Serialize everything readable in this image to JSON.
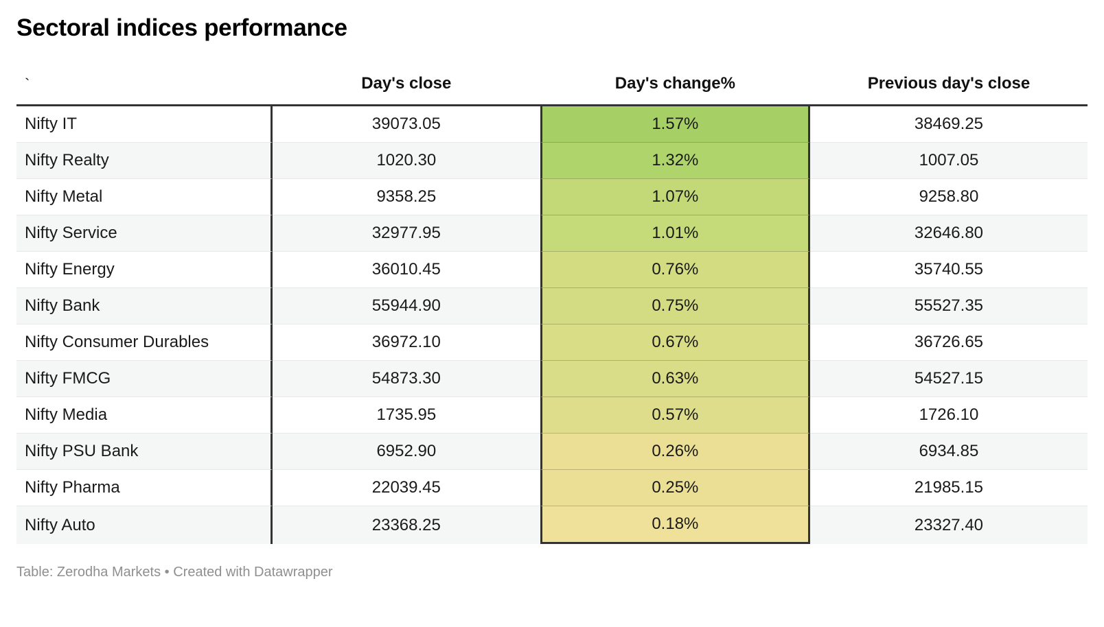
{
  "chart_data": {
    "type": "table",
    "title": "Sectoral indices performance",
    "columns": [
      "`",
      "Day's close",
      "Day's change%",
      "Previous day's close"
    ],
    "rows": [
      {
        "index": "Nifty IT",
        "days_close": "39073.05",
        "days_change_pct": "1.57%",
        "prev_close": "38469.25",
        "change_color": "#a6d065"
      },
      {
        "index": "Nifty Realty",
        "days_close": "1020.30",
        "days_change_pct": "1.32%",
        "prev_close": "1007.05",
        "change_color": "#b0d46c"
      },
      {
        "index": "Nifty Metal",
        "days_close": "9358.25",
        "days_change_pct": "1.07%",
        "prev_close": "9258.80",
        "change_color": "#c3d977"
      },
      {
        "index": "Nifty Service",
        "days_close": "32977.95",
        "days_change_pct": "1.01%",
        "prev_close": "32646.80",
        "change_color": "#c5da79"
      },
      {
        "index": "Nifty Energy",
        "days_close": "36010.45",
        "days_change_pct": "0.76%",
        "prev_close": "35740.55",
        "change_color": "#d4dc82"
      },
      {
        "index": "Nifty Bank",
        "days_close": "55944.90",
        "days_change_pct": "0.75%",
        "prev_close": "55527.35",
        "change_color": "#d4dc83"
      },
      {
        "index": "Nifty Consumer Durables",
        "days_close": "36972.10",
        "days_change_pct": "0.67%",
        "prev_close": "36726.65",
        "change_color": "#d8dd86"
      },
      {
        "index": "Nifty FMCG",
        "days_close": "54873.30",
        "days_change_pct": "0.63%",
        "prev_close": "54527.15",
        "change_color": "#dadd88"
      },
      {
        "index": "Nifty Media",
        "days_close": "1735.95",
        "days_change_pct": "0.57%",
        "prev_close": "1726.10",
        "change_color": "#dedd8b"
      },
      {
        "index": "Nifty PSU Bank",
        "days_close": "6952.90",
        "days_change_pct": "0.26%",
        "prev_close": "6934.85",
        "change_color": "#ebdf95"
      },
      {
        "index": "Nifty Pharma",
        "days_close": "22039.45",
        "days_change_pct": "0.25%",
        "prev_close": "21985.15",
        "change_color": "#ebdf96"
      },
      {
        "index": "Nifty Auto",
        "days_close": "23368.25",
        "days_change_pct": "0.18%",
        "prev_close": "23327.40",
        "change_color": "#efe19a"
      }
    ],
    "layout": {
      "heatmap_column": "Day's change%",
      "heatmap_scale": [
        "#f0e19a",
        "#a6d065"
      ]
    }
  },
  "footer": {
    "text": "Table: Zerodha Markets • Created with Datawrapper"
  },
  "colors": {
    "column_border": "#333333",
    "row_stripe": "#f5f6f6",
    "row_divider": "#e8e8e8",
    "heatmap_max_green": "#a6d065",
    "heatmap_min_yellow": "#efe19a",
    "footer_text": "#8f8f8f"
  }
}
